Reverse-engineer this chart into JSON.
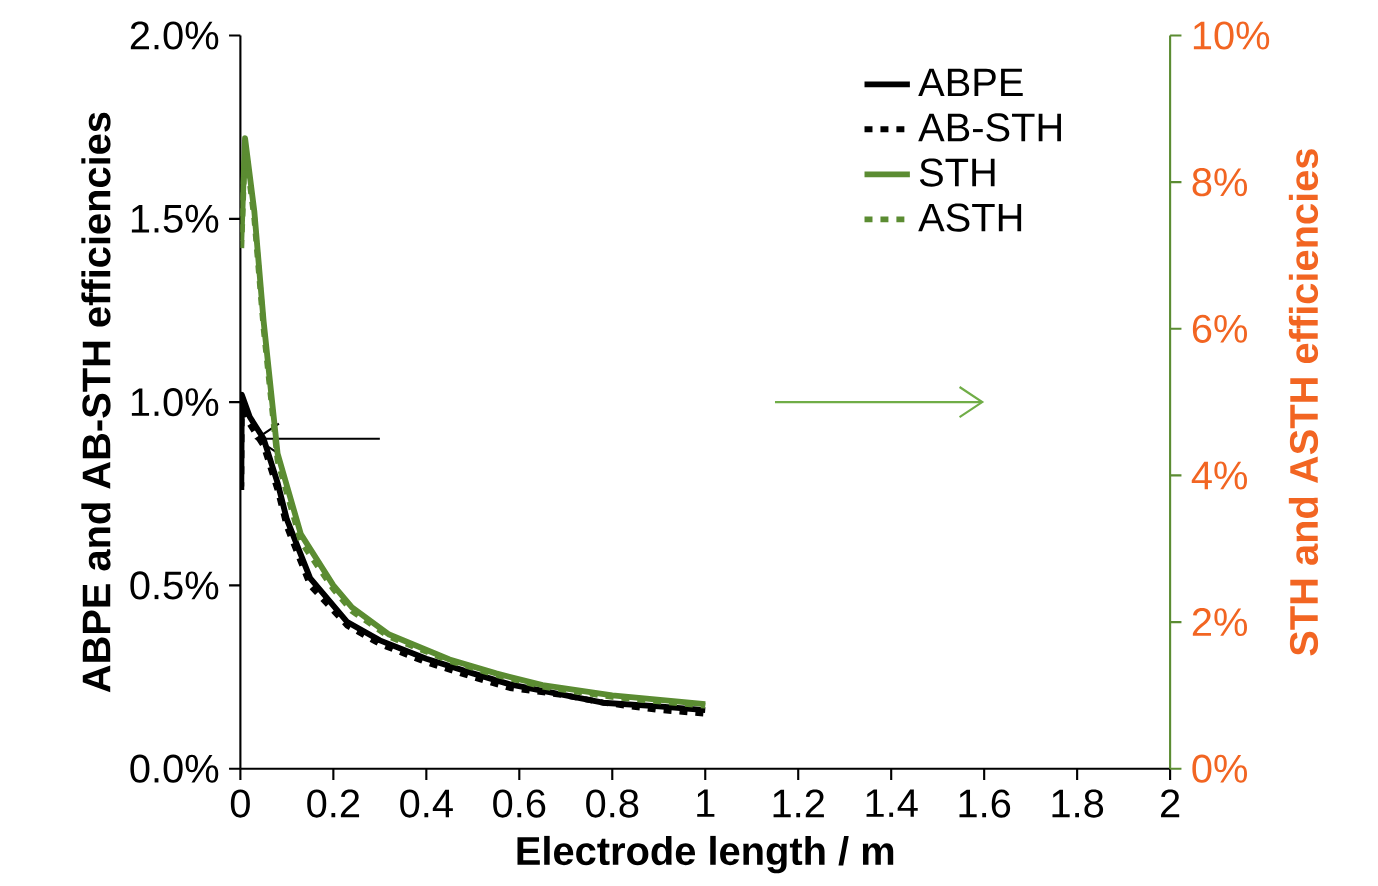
{
  "chart_data": {
    "type": "line",
    "xlabel": "Electrode length / m",
    "ylabel": "ABPE and AB-STH efficiencies",
    "y2label": "STH and ASTH efficiencies",
    "xlim": [
      0,
      2
    ],
    "xticks": [
      0,
      0.2,
      0.4,
      0.6,
      0.8,
      1,
      1.2,
      1.4,
      1.6,
      1.8,
      2
    ],
    "ylim": [
      0,
      2
    ],
    "yticks": [
      {
        "value": 0,
        "label": "0.0%"
      },
      {
        "value": 0.5,
        "label": "0.5%"
      },
      {
        "value": 1,
        "label": "1.0%"
      },
      {
        "value": 1.5,
        "label": "1.5%"
      },
      {
        "value": 2,
        "label": "2.0%"
      }
    ],
    "y2lim": [
      0,
      10
    ],
    "y2ticks": [
      {
        "value": 0,
        "label": "0%"
      },
      {
        "value": 2,
        "label": "2%"
      },
      {
        "value": 4,
        "label": "4%"
      },
      {
        "value": 6,
        "label": "6%"
      },
      {
        "value": 8,
        "label": "8%"
      },
      {
        "value": 10,
        "label": "10%"
      }
    ],
    "legend": "top right",
    "grid": false,
    "marker": "none",
    "series": [
      {
        "name": "ABPE",
        "color": "#000000",
        "line_style": "solid",
        "x": [
          0.002,
          0.003,
          0.02,
          0.05,
          0.08,
          0.1,
          0.15,
          0.23,
          0.3,
          0.4,
          0.5,
          0.58,
          0.7,
          0.78,
          0.9,
          1.0
        ],
        "values": [
          0.77,
          1.02,
          0.96,
          0.9,
          0.78,
          0.68,
          0.52,
          0.4,
          0.35,
          0.3,
          0.26,
          0.23,
          0.2,
          0.18,
          0.17,
          0.16
        ]
      },
      {
        "name": "AB-STH",
        "color": "#000000",
        "line_style": "dashed",
        "x": [
          0.002,
          0.003,
          0.02,
          0.05,
          0.08,
          0.1,
          0.15,
          0.23,
          0.3,
          0.4,
          0.5,
          0.58,
          0.7,
          0.78,
          0.9,
          1.0
        ],
        "values": [
          0.76,
          1.0,
          0.94,
          0.88,
          0.76,
          0.66,
          0.5,
          0.39,
          0.34,
          0.29,
          0.25,
          0.22,
          0.2,
          0.18,
          0.16,
          0.15
        ]
      },
      {
        "name": "STH",
        "color": "#5b8c32",
        "line_style": "solid",
        "axis": "y2",
        "x": [
          0.002,
          0.01,
          0.03,
          0.05,
          0.08,
          0.13,
          0.2,
          0.24,
          0.32,
          0.45,
          0.55,
          0.65,
          0.8,
          1.0
        ],
        "values": [
          7.2,
          8.6,
          7.6,
          6.1,
          4.3,
          3.2,
          2.5,
          2.2,
          1.83,
          1.49,
          1.3,
          1.14,
          1.0,
          0.88
        ]
      },
      {
        "name": "ASTH",
        "color": "#5b8c32",
        "line_style": "dashed",
        "axis": "y2",
        "x": [
          0.002,
          0.01,
          0.03,
          0.05,
          0.08,
          0.13,
          0.2,
          0.24,
          0.32,
          0.45,
          0.55,
          0.65,
          0.8,
          1.0
        ],
        "values": [
          7.1,
          8.5,
          7.5,
          6.0,
          4.2,
          3.1,
          2.45,
          2.15,
          1.8,
          1.47,
          1.28,
          1.12,
          0.98,
          0.86
        ]
      }
    ]
  }
}
